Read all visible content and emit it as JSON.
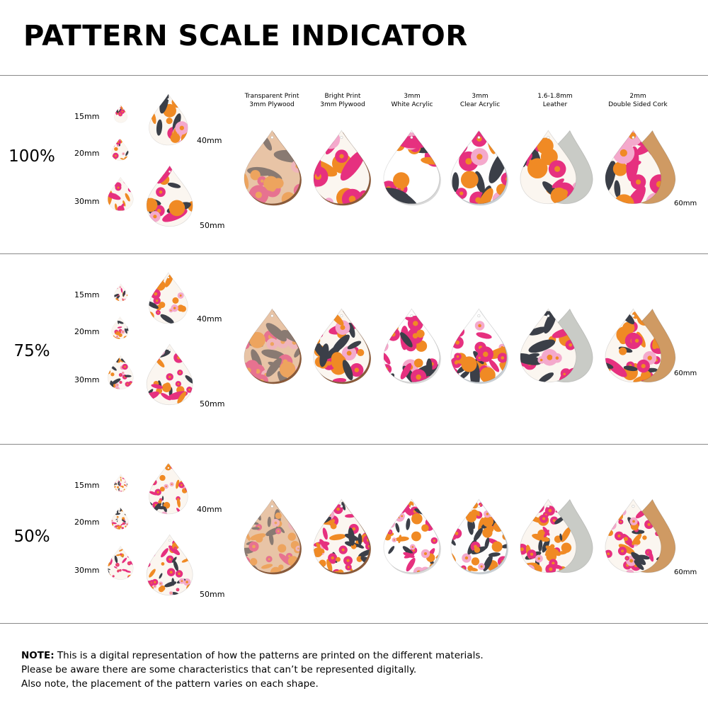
{
  "title": "PATTERN SCALE INDICATOR",
  "materials": [
    {
      "line1": "Transparent Print",
      "line2": "3mm Plywood"
    },
    {
      "line1": "Bright Print",
      "line2": "3mm Plywood"
    },
    {
      "line1": "3mm",
      "line2": "White Acrylic"
    },
    {
      "line1": "3mm",
      "line2": "Clear Acrylic"
    },
    {
      "line1": "1.6-1.8mm",
      "line2": "Leather"
    },
    {
      "line1": "2mm",
      "line2": "Double Sided Cork"
    }
  ],
  "rows": [
    {
      "scale": "100%",
      "sizes": [
        "15mm",
        "20mm",
        "30mm",
        "40mm",
        "50mm"
      ],
      "large_size": "60mm"
    },
    {
      "scale": "75%",
      "sizes": [
        "15mm",
        "20mm",
        "30mm",
        "40mm",
        "50mm"
      ],
      "large_size": "60mm"
    },
    {
      "scale": "50%",
      "sizes": [
        "15mm",
        "20mm",
        "30mm",
        "40mm",
        "50mm"
      ],
      "large_size": "60mm"
    }
  ],
  "note": {
    "label": "NOTE:",
    "line1": " This is a digital representation of how the patterns are printed on the different materials.",
    "line2": "Please be aware there are some characteristics that can’t be represented digitally.",
    "line3": "Also note, the placement of the pattern varies on each shape."
  },
  "colors": {
    "pink": "#e6307f",
    "light_pink": "#f4a9cc",
    "orange": "#f08a24",
    "dark_leaf": "#3b3f48",
    "cream": "#fbf6f0",
    "plywood": "#e8c4a6",
    "plywood_edge": "#8a5a3a",
    "leather_back": "#c9cbc6",
    "cork_back": "#cf9a63"
  }
}
